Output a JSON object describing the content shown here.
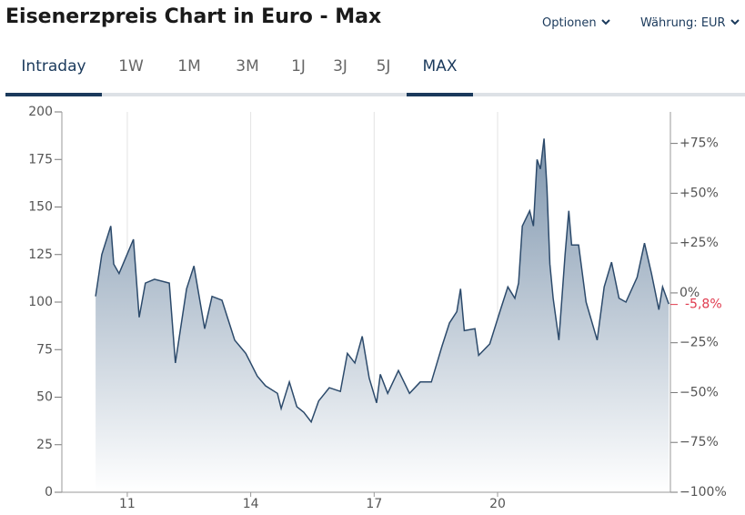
{
  "header": {
    "title": "Eisenerzpreis Chart in Euro - Max",
    "options": "Optionen",
    "currency": "Währung: EUR"
  },
  "tabs": {
    "items": [
      "Intraday",
      "1W",
      "1M",
      "3M",
      "1J",
      "3J",
      "5J",
      "MAX"
    ],
    "active": 7
  },
  "chart_data": {
    "type": "area",
    "color": "#2c4a6b",
    "grid": true,
    "x": [
      10.23,
      10.38,
      10.6,
      10.67,
      10.8,
      11.15,
      11.29,
      11.44,
      11.66,
      12.02,
      12.17,
      12.44,
      12.62,
      12.88,
      13.06,
      13.3,
      13.61,
      13.88,
      14.16,
      14.36,
      14.65,
      14.74,
      14.94,
      15.12,
      15.29,
      15.47,
      15.65,
      15.91,
      16.18,
      16.35,
      16.53,
      16.71,
      16.88,
      17.06,
      17.15,
      17.33,
      17.59,
      17.86,
      18.12,
      18.39,
      18.65,
      18.83,
      19.01,
      19.1,
      19.19,
      19.45,
      19.54,
      19.81,
      20.07,
      20.25,
      20.42,
      20.51,
      20.6,
      20.78,
      20.87,
      20.96,
      21.04,
      21.13,
      21.2,
      21.27,
      21.35,
      21.49,
      21.64,
      21.73,
      21.8,
      21.97,
      22.15,
      22.42,
      22.59,
      22.77,
      22.95,
      23.12,
      23.39,
      23.57,
      23.74,
      23.92,
      24.01,
      24.16
    ],
    "values": [
      103,
      125,
      140,
      120,
      115,
      133,
      92,
      110,
      112,
      110,
      68,
      107,
      119,
      86,
      103,
      101,
      80,
      73,
      61,
      56,
      52,
      44,
      58,
      45,
      42,
      37,
      48,
      55,
      53,
      73,
      68,
      82,
      60,
      47,
      62,
      52,
      64,
      52,
      58,
      58,
      77,
      89,
      95,
      107,
      85,
      86,
      72,
      78,
      96,
      108,
      102,
      110,
      140,
      148,
      140,
      175,
      170,
      186,
      160,
      120,
      102,
      80,
      125,
      148,
      130,
      130,
      100,
      80,
      108,
      121,
      102,
      100,
      113,
      131,
      115,
      96,
      108,
      99
    ],
    "xlim": [
      9.41,
      24.2
    ],
    "xticks": [
      11,
      14,
      17,
      20
    ],
    "ylim": [
      0,
      200
    ],
    "yticks": [
      0,
      25,
      50,
      75,
      100,
      125,
      150,
      175,
      200
    ],
    "y2lim": [
      -100,
      90.8
    ],
    "y2ticks": [
      {
        "value": -100,
        "label": "−100%"
      },
      {
        "value": -75,
        "label": "−75%"
      },
      {
        "value": -50,
        "label": "−50%"
      },
      {
        "value": -25,
        "label": "−25%"
      },
      {
        "value": 0,
        "label": "0%"
      },
      {
        "value": 25,
        "label": "+25%"
      },
      {
        "value": 50,
        "label": "+50%"
      },
      {
        "value": 75,
        "label": "+75%"
      }
    ],
    "current_change": {
      "value": -5.8,
      "label": "-5,8%"
    }
  }
}
